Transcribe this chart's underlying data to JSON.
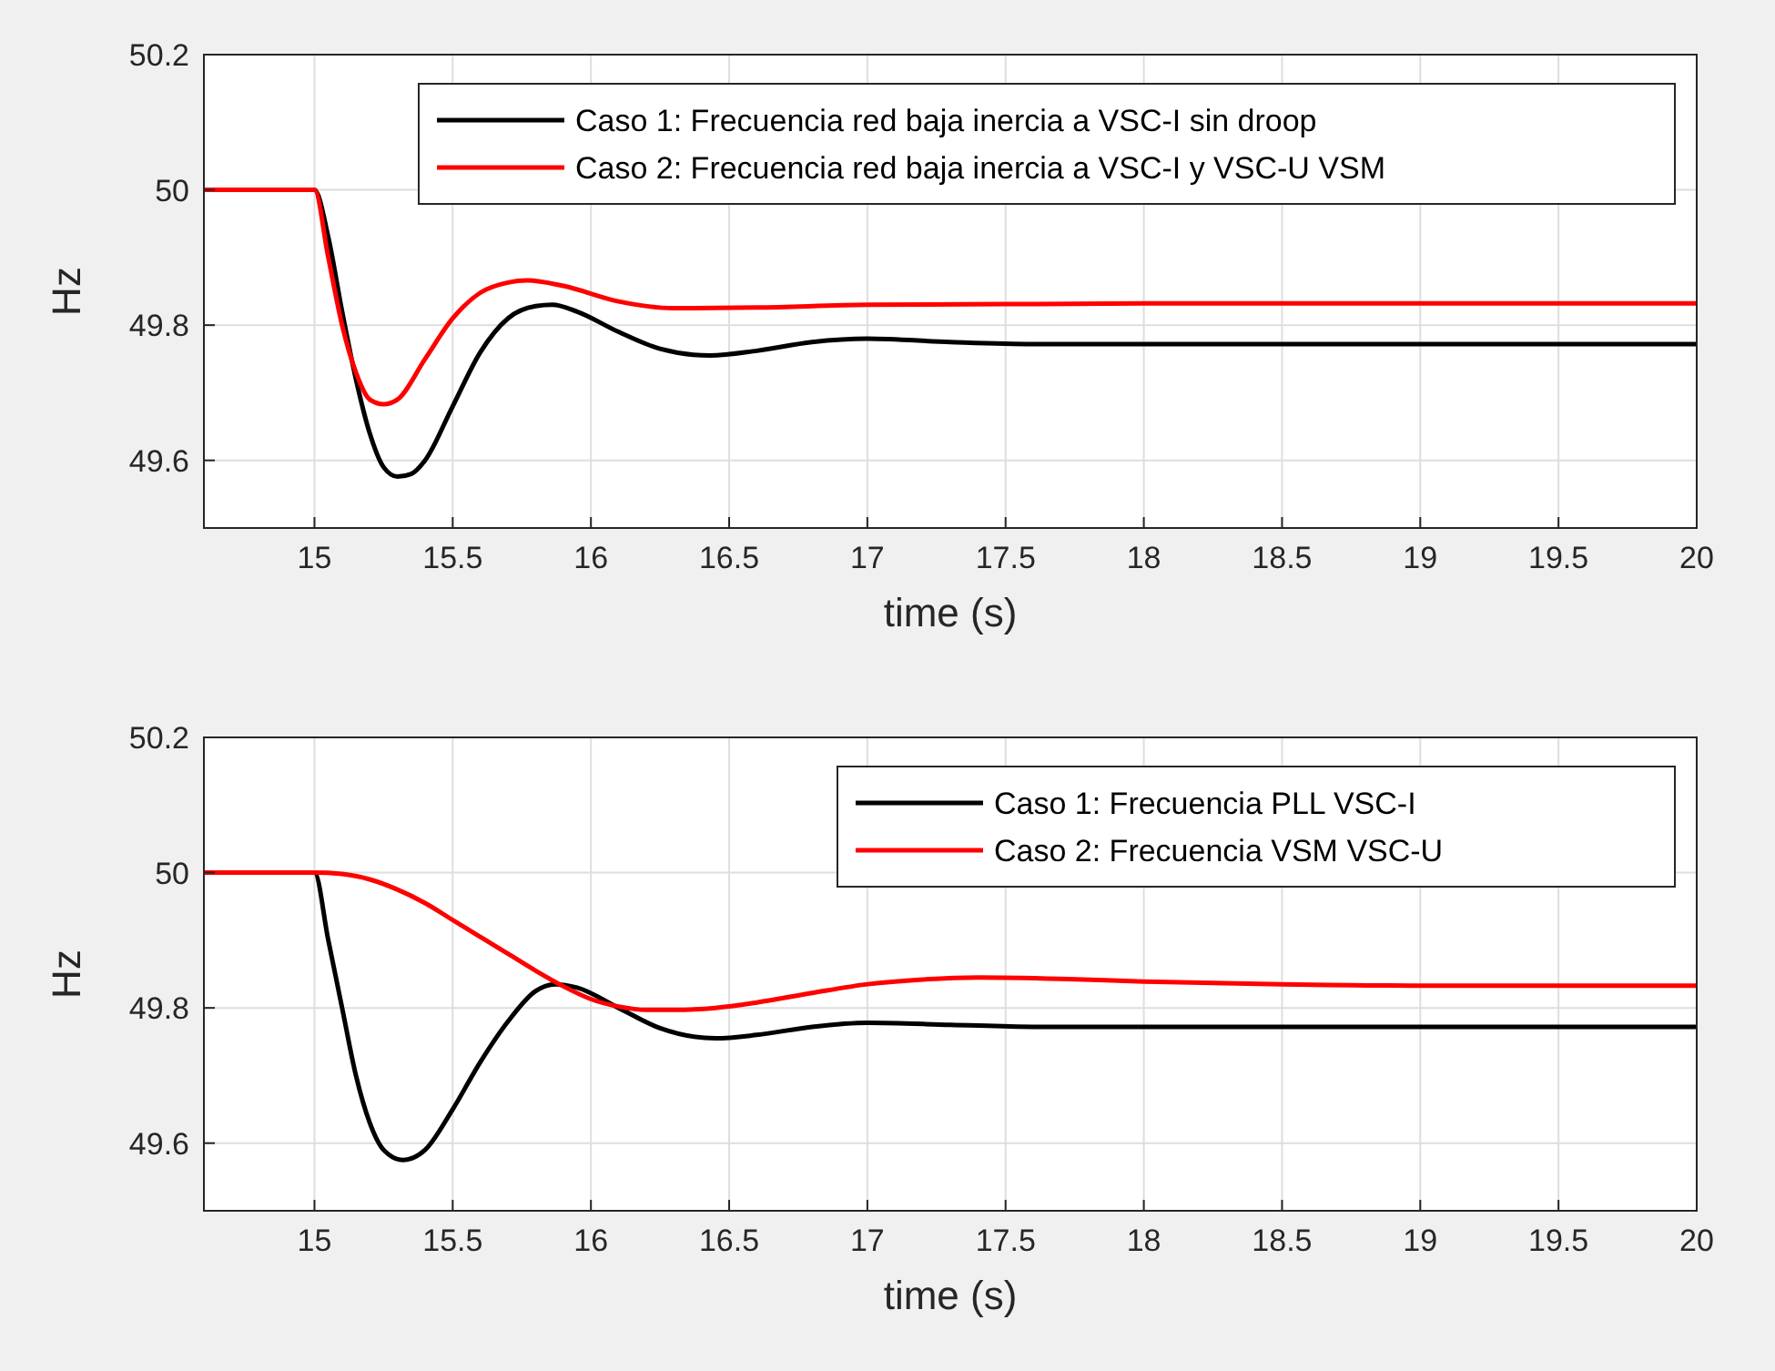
{
  "chart_data": [
    {
      "type": "line",
      "xlabel": "time (s)",
      "ylabel": "Hz",
      "xlim": [
        14.6,
        20
      ],
      "ylim": [
        49.5,
        50.2
      ],
      "xticks": [
        15,
        15.5,
        16,
        16.5,
        17,
        17.5,
        18,
        18.5,
        19,
        19.5,
        20
      ],
      "yticks": [
        49.6,
        49.8,
        50,
        50.2
      ],
      "grid": true,
      "legend": "top right",
      "line_style": "solid",
      "marker": "none",
      "series": [
        {
          "name": "Caso 1: Frecuencia red baja inercia a VSC-I sin droop",
          "color": "#000000",
          "x": [
            14.6,
            15,
            15.05,
            15.1,
            15.15,
            15.2,
            15.25,
            15.3,
            15.35,
            15.4,
            15.5,
            15.6,
            15.7,
            15.8,
            15.86,
            15.95,
            16.1,
            16.25,
            16.43,
            16.6,
            16.8,
            17,
            17.3,
            17.6,
            18,
            19,
            20
          ],
          "values": [
            50,
            50,
            49.93,
            49.82,
            49.72,
            49.64,
            49.59,
            49.576,
            49.58,
            49.6,
            49.68,
            49.76,
            49.81,
            49.828,
            49.83,
            49.82,
            49.79,
            49.765,
            49.755,
            49.762,
            49.775,
            49.78,
            49.775,
            49.772,
            49.772,
            49.772,
            49.772
          ]
        },
        {
          "name": "Caso 2: Frecuencia red baja inercia a VSC-I y VSC-U VSM",
          "color": "#ff0000",
          "x": [
            14.6,
            15,
            15.05,
            15.1,
            15.15,
            15.2,
            15.25,
            15.3,
            15.4,
            15.5,
            15.6,
            15.7,
            15.77,
            15.9,
            16.1,
            16.3,
            16.6,
            17,
            17.5,
            18,
            19,
            20
          ],
          "values": [
            50,
            50,
            49.9,
            49.8,
            49.73,
            49.69,
            49.683,
            49.69,
            49.75,
            49.81,
            49.848,
            49.863,
            49.866,
            49.858,
            49.835,
            49.825,
            49.826,
            49.83,
            49.831,
            49.832,
            49.832,
            49.832
          ]
        }
      ]
    },
    {
      "type": "line",
      "xlabel": "time (s)",
      "ylabel": "Hz",
      "xlim": [
        14.6,
        20
      ],
      "ylim": [
        49.5,
        50.2
      ],
      "xticks": [
        15,
        15.5,
        16,
        16.5,
        17,
        17.5,
        18,
        18.5,
        19,
        19.5,
        20
      ],
      "yticks": [
        49.6,
        49.8,
        50,
        50.2
      ],
      "grid": true,
      "legend": "top right",
      "line_style": "solid",
      "marker": "none",
      "series": [
        {
          "name": "Caso 1: Frecuencia PLL VSC-I",
          "color": "#000000",
          "x": [
            14.6,
            15,
            15.05,
            15.1,
            15.15,
            15.2,
            15.25,
            15.32,
            15.4,
            15.5,
            15.6,
            15.7,
            15.8,
            15.87,
            15.95,
            16.1,
            16.25,
            16.45,
            16.6,
            16.8,
            17,
            17.3,
            17.6,
            18,
            19,
            20
          ],
          "values": [
            50,
            50,
            49.9,
            49.8,
            49.7,
            49.63,
            49.59,
            49.575,
            49.59,
            49.65,
            49.72,
            49.78,
            49.825,
            49.835,
            49.83,
            49.8,
            49.77,
            49.755,
            49.76,
            49.772,
            49.778,
            49.775,
            49.772,
            49.772,
            49.772,
            49.772
          ]
        },
        {
          "name": "Caso 2: Frecuencia VSM VSC-U",
          "color": "#ff0000",
          "x": [
            14.6,
            15,
            15.1,
            15.2,
            15.3,
            15.4,
            15.5,
            15.6,
            15.7,
            15.8,
            15.9,
            16,
            16.1,
            16.2,
            16.3,
            16.45,
            16.6,
            16.8,
            17,
            17.2,
            17.4,
            17.7,
            18,
            18.5,
            19,
            20
          ],
          "values": [
            50,
            50,
            49.998,
            49.99,
            49.975,
            49.955,
            49.93,
            49.905,
            49.88,
            49.855,
            49.832,
            49.813,
            49.802,
            49.797,
            49.797,
            49.8,
            49.808,
            49.822,
            49.835,
            49.842,
            49.845,
            49.843,
            49.839,
            49.835,
            49.833,
            49.833
          ]
        }
      ]
    }
  ]
}
